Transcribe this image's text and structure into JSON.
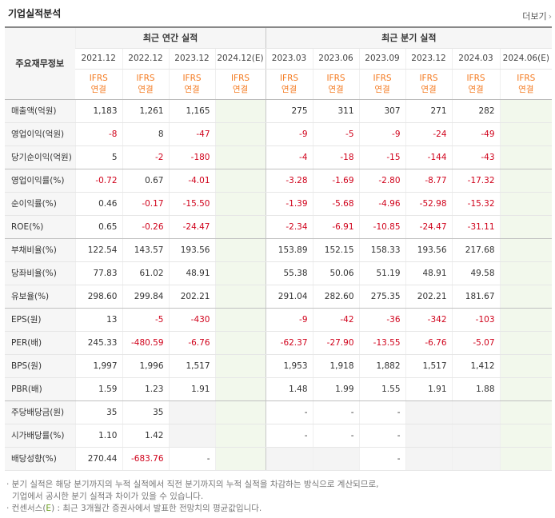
{
  "header": {
    "title": "기업실적분석",
    "more_label": "더보기",
    "more_chevron": "›"
  },
  "table": {
    "stub_header": "주요재무정보",
    "annual_group": "최근 연간 실적",
    "quarter_group": "최근 분기 실적",
    "annual_periods": [
      "2021.12",
      "2022.12",
      "2023.12",
      "2024.12(E)"
    ],
    "quarter_periods": [
      "2023.03",
      "2023.06",
      "2023.09",
      "2023.12",
      "2024.03",
      "2024.06(E)"
    ],
    "standard_top": "IFRS",
    "standard_bottom": "연결",
    "rows": [
      {
        "label": "매출액(억원)",
        "a": [
          "1,183",
          "1,261",
          "1,165",
          ""
        ],
        "q": [
          "275",
          "311",
          "307",
          "271",
          "282",
          ""
        ]
      },
      {
        "label": "영업이익(억원)",
        "a": [
          "-8",
          "8",
          "-47",
          ""
        ],
        "q": [
          "-9",
          "-5",
          "-9",
          "-24",
          "-49",
          ""
        ]
      },
      {
        "label": "당기순이익(억원)",
        "a": [
          "5",
          "-2",
          "-180",
          ""
        ],
        "q": [
          "-4",
          "-18",
          "-15",
          "-144",
          "-43",
          ""
        ]
      },
      {
        "label": "영업이익률(%)",
        "a": [
          "-0.72",
          "0.67",
          "-4.01",
          ""
        ],
        "q": [
          "-3.28",
          "-1.69",
          "-2.80",
          "-8.77",
          "-17.32",
          ""
        ]
      },
      {
        "label": "순이익률(%)",
        "a": [
          "0.46",
          "-0.17",
          "-15.50",
          ""
        ],
        "q": [
          "-1.39",
          "-5.68",
          "-4.96",
          "-52.98",
          "-15.32",
          ""
        ]
      },
      {
        "label": "ROE(%)",
        "a": [
          "0.65",
          "-0.26",
          "-24.47",
          ""
        ],
        "q": [
          "-2.34",
          "-6.91",
          "-10.85",
          "-24.47",
          "-31.11",
          ""
        ]
      },
      {
        "label": "부채비율(%)",
        "a": [
          "122.54",
          "143.57",
          "193.56",
          ""
        ],
        "q": [
          "153.89",
          "152.15",
          "158.33",
          "193.56",
          "217.68",
          ""
        ]
      },
      {
        "label": "당좌비율(%)",
        "a": [
          "77.83",
          "61.02",
          "48.91",
          ""
        ],
        "q": [
          "55.38",
          "50.06",
          "51.19",
          "48.91",
          "49.58",
          ""
        ]
      },
      {
        "label": "유보율(%)",
        "a": [
          "298.60",
          "299.84",
          "202.21",
          ""
        ],
        "q": [
          "291.04",
          "282.60",
          "275.35",
          "202.21",
          "181.67",
          ""
        ]
      },
      {
        "label": "EPS(원)",
        "a": [
          "13",
          "-5",
          "-430",
          ""
        ],
        "q": [
          "-9",
          "-42",
          "-36",
          "-342",
          "-103",
          ""
        ]
      },
      {
        "label": "PER(배)",
        "a": [
          "245.33",
          "-480.59",
          "-6.76",
          ""
        ],
        "q": [
          "-62.37",
          "-27.90",
          "-13.55",
          "-6.76",
          "-5.07",
          ""
        ]
      },
      {
        "label": "BPS(원)",
        "a": [
          "1,997",
          "1,996",
          "1,517",
          ""
        ],
        "q": [
          "1,953",
          "1,918",
          "1,882",
          "1,517",
          "1,412",
          ""
        ]
      },
      {
        "label": "PBR(배)",
        "a": [
          "1.59",
          "1.23",
          "1.91",
          ""
        ],
        "q": [
          "1.48",
          "1.99",
          "1.55",
          "1.91",
          "1.88",
          ""
        ]
      },
      {
        "label": "주당배당금(원)",
        "a": [
          "35",
          "35",
          "",
          ""
        ],
        "q": [
          "-",
          "-",
          "-",
          "",
          "",
          ""
        ]
      },
      {
        "label": "시가배당률(%)",
        "a": [
          "1.10",
          "1.42",
          "",
          ""
        ],
        "q": [
          "-",
          "-",
          "-",
          "",
          "",
          ""
        ]
      },
      {
        "label": "배당성향(%)",
        "a": [
          "270.44",
          "-683.76",
          "-",
          ""
        ],
        "q": [
          "",
          "",
          "-",
          "",
          "",
          ""
        ]
      }
    ]
  },
  "notes": {
    "line1": "· 분기 실적은 해당 분기까지의 누적 실적에서 직전 분기까지의 누적 실적을 차감하는 방식으로 계산되므로,",
    "line2": "기업에서 공시한 분기 실적과 차이가 있을 수 있습니다.",
    "line3_prefix": "· 컨센서스(",
    "line3_mark": "E",
    "line3_suffix": ") : 최근 3개월간 증권사에서 발표한 전망치의 평균값입니다."
  },
  "colors": {
    "negative": "#d0021b",
    "ifrs": "#f47a20",
    "estimate_bg": "#f2f8ec"
  }
}
